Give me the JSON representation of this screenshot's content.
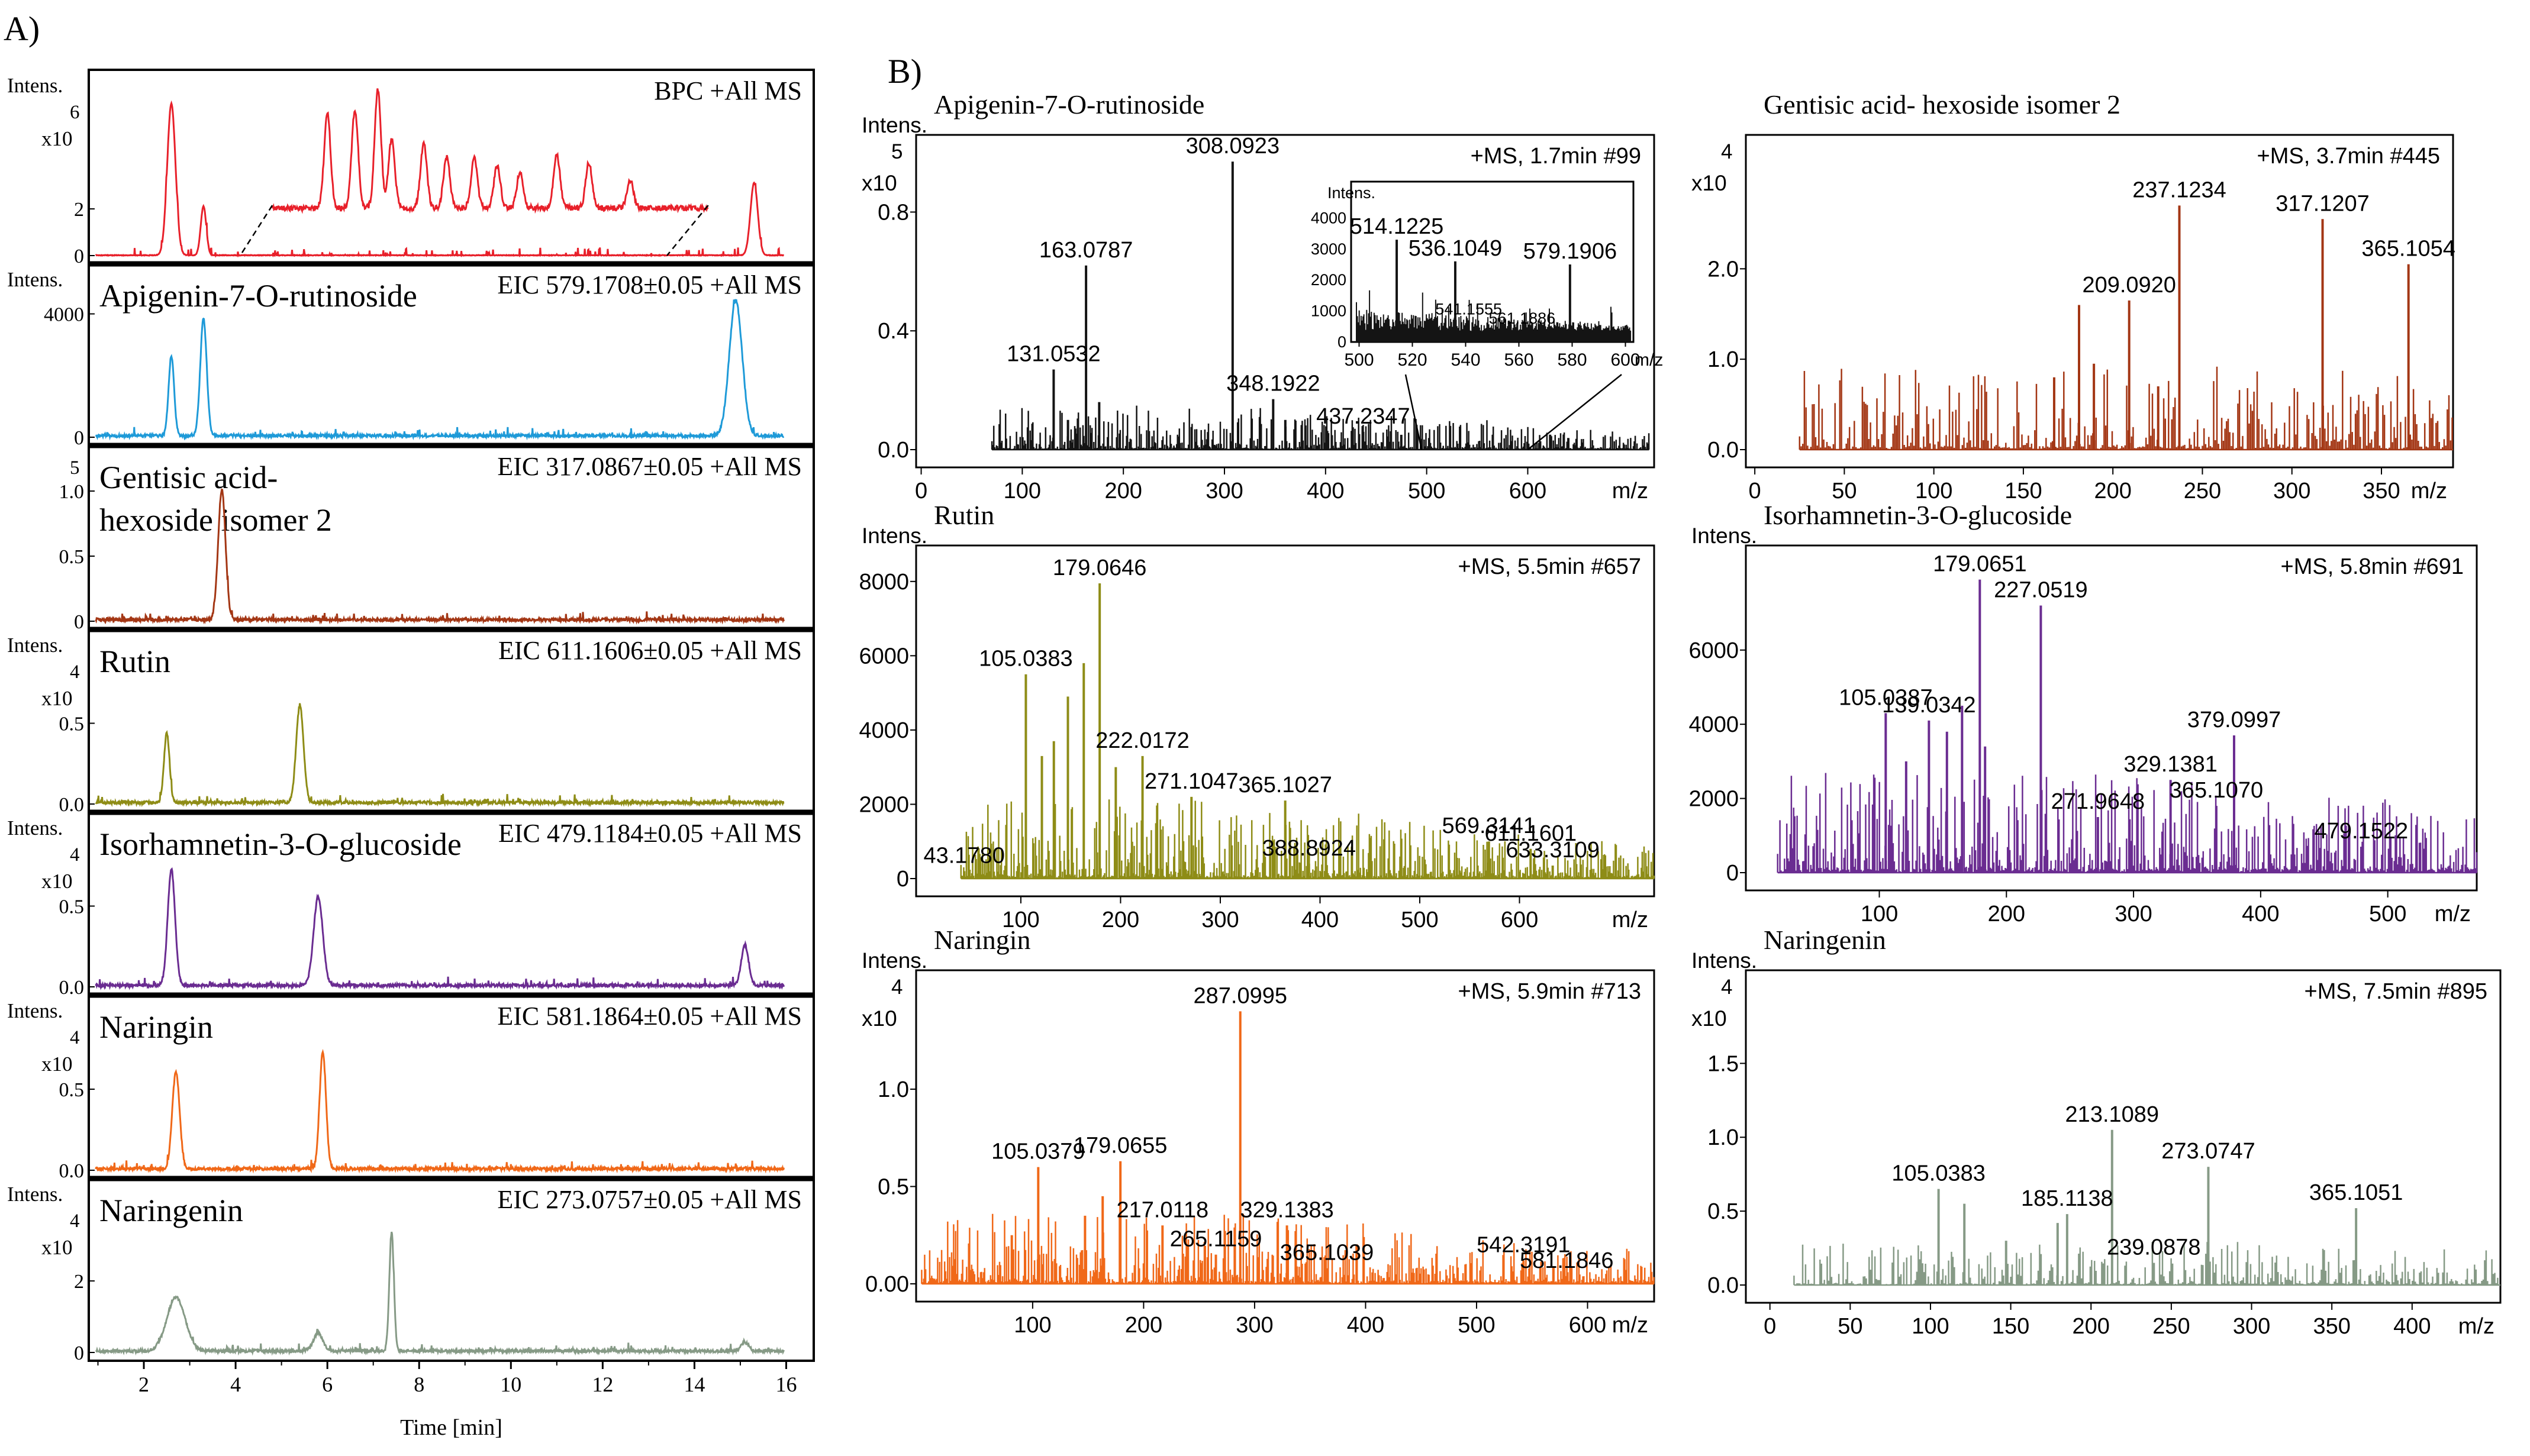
{
  "panel_a_label": "A)",
  "panel_b_label": "B)",
  "chart_data": [
    {
      "id": "a_bpc",
      "panel": "A",
      "type": "line",
      "title": "",
      "annotation": "BPC +All MS",
      "ylabel": "Intens.",
      "multiplier": "x10",
      "exponent": "6",
      "yticks": [
        "2",
        "0"
      ],
      "ytick_values": [
        2,
        0
      ],
      "ylim": [
        0,
        7.4
      ],
      "color": "#e8202a",
      "peaks": [
        [
          2.6,
          6.5,
          0.09
        ],
        [
          3.3,
          2.1,
          0.06
        ],
        [
          15.3,
          3.1,
          0.08
        ]
      ],
      "inset_trace": {
        "x_start": 4.8,
        "x_end": 14.3,
        "peaks": [
          [
            6.0,
            4.4
          ],
          [
            6.6,
            4.6
          ],
          [
            7.1,
            5.5
          ],
          [
            7.4,
            3.2
          ],
          [
            8.1,
            3.0
          ],
          [
            8.6,
            2.4
          ],
          [
            9.2,
            2.3
          ],
          [
            9.7,
            2.0
          ],
          [
            10.2,
            1.7
          ],
          [
            11.0,
            2.5
          ],
          [
            11.7,
            2.1
          ],
          [
            12.6,
            1.3
          ]
        ]
      }
    },
    {
      "id": "a_apigenin",
      "panel": "A",
      "type": "line",
      "title": "Apigenin-7-O-rutinoside",
      "annotation": "EIC 579.1708±0.05 +All MS",
      "ylabel": "Intens.",
      "multiplier": "",
      "exponent": "",
      "yticks": [
        "4000",
        "0"
      ],
      "ytick_values": [
        4000,
        0
      ],
      "ylim": [
        0,
        5200
      ],
      "color": "#1e9ad8",
      "peaks": [
        [
          2.6,
          2600,
          0.06
        ],
        [
          3.3,
          3800,
          0.07
        ],
        [
          14.9,
          4400,
          0.14
        ]
      ]
    },
    {
      "id": "a_gentisic",
      "panel": "A",
      "type": "line",
      "title": "Gentisic acid-\nhexoside isomer 2",
      "annotation": "EIC 317.0867±0.05 +All MS",
      "ylabel": "",
      "multiplier": "",
      "exponent": "5",
      "yticks": [
        "1.0",
        "0.5",
        "0"
      ],
      "ytick_values": [
        1.0,
        0.5,
        0
      ],
      "ylim": [
        0,
        1.25
      ],
      "color": "#a33614",
      "peaks": [
        [
          3.7,
          1.0,
          0.08
        ]
      ]
    },
    {
      "id": "a_rutin",
      "panel": "A",
      "type": "line",
      "title": "Rutin",
      "annotation": "EIC 611.1606±0.05 +All MS",
      "ylabel": "Intens.",
      "multiplier": "x10",
      "exponent": "4",
      "yticks": [
        "0.5",
        "0.0"
      ],
      "ytick_values": [
        0.5,
        0
      ],
      "ylim": [
        0,
        1.0
      ],
      "color": "#8e8c16",
      "peaks": [
        [
          2.5,
          0.43,
          0.06
        ],
        [
          5.4,
          0.6,
          0.08
        ]
      ]
    },
    {
      "id": "a_isorhamnetin",
      "panel": "A",
      "type": "line",
      "title": "Isorhamnetin-3-O-glucoside",
      "annotation": "EIC 479.1184±0.05 +All MS",
      "ylabel": "Intens.",
      "multiplier": "x10",
      "exponent": "4",
      "yticks": [
        "0.5",
        "0.0"
      ],
      "ytick_values": [
        0.5,
        0
      ],
      "ylim": [
        0,
        1.0
      ],
      "color": "#6a2c91",
      "peaks": [
        [
          2.6,
          0.72,
          0.08
        ],
        [
          5.8,
          0.55,
          0.1
        ],
        [
          15.1,
          0.25,
          0.08
        ]
      ]
    },
    {
      "id": "a_naringin",
      "panel": "A",
      "type": "line",
      "title": "Naringin",
      "annotation": "EIC 581.1864±0.05 +All MS",
      "ylabel": "Intens.",
      "multiplier": "x10",
      "exponent": "4",
      "yticks": [
        "0.5",
        "0.0"
      ],
      "ytick_values": [
        0.5,
        0
      ],
      "ylim": [
        0,
        1.0
      ],
      "color": "#f06818",
      "peaks": [
        [
          2.7,
          0.6,
          0.08
        ],
        [
          5.9,
          0.72,
          0.07
        ]
      ]
    },
    {
      "id": "a_naringenin",
      "panel": "A",
      "type": "line",
      "title": "Naringenin",
      "annotation": "EIC 273.0757±0.05 +All MS",
      "ylabel": "Intens.",
      "multiplier": "x10",
      "exponent": "4",
      "yticks": [
        "2",
        "0"
      ],
      "ytick_values": [
        2,
        0
      ],
      "ylim": [
        0,
        4.5
      ],
      "color": "#869a86",
      "peaks": [
        [
          2.7,
          1.5,
          0.2
        ],
        [
          5.8,
          0.5,
          0.1
        ],
        [
          7.4,
          3.3,
          0.05
        ],
        [
          15.1,
          0.25,
          0.08
        ]
      ],
      "xlabel": "Time [min]",
      "xticks": [
        "2",
        "4",
        "6",
        "8",
        "10",
        "12",
        "14",
        "16"
      ],
      "xtick_values": [
        2,
        4,
        6,
        8,
        10,
        12,
        14,
        16
      ],
      "xlim": [
        0.8,
        16.6
      ]
    },
    {
      "id": "b_apigenin",
      "panel": "B",
      "type": "bar",
      "title": "Apigenin-7-O-rutinoside",
      "scan": "+MS, 1.7min #99",
      "ylabel": "Intens.",
      "multiplier": "x10",
      "exponent": "5",
      "yticks": [
        "0.8",
        "0.4",
        "0.0"
      ],
      "ytick_values": [
        0.8,
        0.4,
        0
      ],
      "ylim": [
        0,
        1.02
      ],
      "xlabel": "m/z",
      "xticks": [
        "0",
        "100",
        "200",
        "300",
        "400",
        "500",
        "600"
      ],
      "xtick_values": [
        0,
        100,
        200,
        300,
        400,
        500,
        600
      ],
      "xlim": [
        -5,
        725
      ],
      "color": "#141414",
      "noise_range": [
        70,
        720
      ],
      "noise_level": 0.05,
      "peaks": [
        [
          163.0787,
          0.62,
          "163.0787"
        ],
        [
          131.0532,
          0.27,
          "131.0532"
        ],
        [
          308.0923,
          0.97,
          "308.0923"
        ],
        [
          348.1922,
          0.17,
          "348.1922"
        ],
        [
          437.2347,
          0.06,
          "437.2347"
        ],
        [
          176.1,
          0.16,
          ""
        ],
        [
          360.2,
          0.1,
          ""
        ],
        [
          145.2,
          0.1,
          ""
        ],
        [
          474.9,
          0.05,
          ""
        ]
      ],
      "inset": {
        "ylabel": "Intens.",
        "yticks": [
          "4000",
          "3000",
          "2000",
          "1000",
          "0"
        ],
        "ytick_values": [
          4000,
          3000,
          2000,
          1000,
          0
        ],
        "ylim": [
          0,
          4600
        ],
        "xticks": [
          "500",
          "520",
          "540",
          "560",
          "580",
          "600"
        ],
        "xtick_values": [
          500,
          520,
          540,
          560,
          580,
          600
        ],
        "xlim": [
          497,
          603
        ],
        "xlabel": "m/z",
        "peaks": [
          [
            514.1225,
            3300,
            "514.1225"
          ],
          [
            536.1049,
            2600,
            "536.1049"
          ],
          [
            579.1906,
            2500,
            "579.1906"
          ],
          [
            541.1555,
            700,
            "541.1555"
          ],
          [
            561.1886,
            400,
            "561.1886"
          ]
        ]
      }
    },
    {
      "id": "b_gentisic",
      "panel": "B",
      "type": "bar",
      "title": "Gentisic acid- hexoside isomer 2",
      "scan": "+MS, 3.7min #445",
      "ylabel": "",
      "multiplier": "x10",
      "exponent": "4",
      "yticks": [
        "2.0",
        "1.0",
        "0.0"
      ],
      "ytick_values": [
        2.0,
        1.0,
        0
      ],
      "ylim": [
        0,
        3.35
      ],
      "xlabel": "m/z",
      "xticks": [
        "0",
        "50",
        "100",
        "150",
        "200",
        "250",
        "300",
        "350"
      ],
      "xtick_values": [
        0,
        50,
        100,
        150,
        200,
        250,
        300,
        350
      ],
      "xlim": [
        -5,
        390
      ],
      "color": "#a33614",
      "noise_range": [
        25,
        390
      ],
      "noise_level": 0.3,
      "peaks": [
        [
          237.1234,
          2.7,
          "237.1234"
        ],
        [
          317.1207,
          2.55,
          "317.1207"
        ],
        [
          365.1054,
          2.05,
          "365.1054"
        ],
        [
          209.092,
          1.65,
          "209.0920"
        ],
        [
          181.1,
          1.6,
          ""
        ],
        [
          189.4,
          0.95,
          ""
        ],
        [
          225.3,
          0.7,
          ""
        ],
        [
          167.2,
          0.8,
          ""
        ]
      ]
    },
    {
      "id": "b_rutin",
      "panel": "B",
      "type": "bar",
      "title": "Rutin",
      "scan": "+MS, 5.5min #657",
      "ylabel": "Intens.",
      "multiplier": "",
      "exponent": "",
      "yticks": [
        "8000",
        "6000",
        "4000",
        "2000",
        "0"
      ],
      "ytick_values": [
        8000,
        6000,
        4000,
        2000,
        0
      ],
      "ylim": [
        0,
        8650
      ],
      "xlabel": "m/z",
      "xticks": [
        "100",
        "200",
        "300",
        "400",
        "500",
        "600"
      ],
      "xtick_values": [
        100,
        200,
        300,
        400,
        500,
        600
      ],
      "xlim": [
        -5,
        735
      ],
      "color": "#8e8c16",
      "noise_range": [
        40,
        735
      ],
      "noise_level": 700,
      "peaks": [
        [
          179.0646,
          7950,
          "179.0646"
        ],
        [
          105.0383,
          5500,
          "105.0383"
        ],
        [
          222.0172,
          3300,
          "222.0172"
        ],
        [
          271.1047,
          2200,
          "271.1047"
        ],
        [
          365.1027,
          2100,
          "365.1027"
        ],
        [
          388.8924,
          400,
          "388.8924"
        ],
        [
          611.1601,
          800,
          "611.1601"
        ],
        [
          569.3141,
          1000,
          "569.3141"
        ],
        [
          633.3109,
          350,
          "633.3109"
        ],
        [
          43.178,
          200,
          "43.1780"
        ],
        [
          163.1,
          5800,
          ""
        ],
        [
          147.2,
          4900,
          ""
        ],
        [
          133.1,
          3700,
          ""
        ],
        [
          195.2,
          3000,
          ""
        ],
        [
          121.1,
          3300,
          ""
        ]
      ]
    },
    {
      "id": "b_isorhamnetin",
      "panel": "B",
      "type": "bar",
      "title": "Isorhamnetin-3-O-glucoside",
      "scan": "+MS, 5.8min #691",
      "ylabel": "Intens.",
      "multiplier": "",
      "exponent": "",
      "yticks": [
        "6000",
        "4000",
        "2000",
        "0"
      ],
      "ytick_values": [
        6000,
        4000,
        2000,
        0
      ],
      "ylim": [
        0,
        8500
      ],
      "xlabel": "m/z",
      "xticks": [
        "100",
        "200",
        "300",
        "400",
        "500"
      ],
      "xtick_values": [
        100,
        200,
        300,
        400,
        500
      ],
      "xlim": [
        -5,
        570
      ],
      "color": "#6a2c91",
      "noise_range": [
        20,
        570
      ],
      "noise_level": 900,
      "peaks": [
        [
          179.0651,
          7900,
          "179.0651"
        ],
        [
          227.0519,
          7200,
          "227.0519"
        ],
        [
          105.0387,
          4300,
          "105.0387"
        ],
        [
          139.0342,
          4100,
          "139.0342"
        ],
        [
          379.0997,
          3700,
          "379.0997"
        ],
        [
          329.1381,
          2500,
          "329.1381"
        ],
        [
          365.107,
          1800,
          "365.1070"
        ],
        [
          271.9648,
          1500,
          "271.9648"
        ],
        [
          479.1522,
          700,
          "479.1522"
        ],
        [
          165.1,
          4500,
          ""
        ],
        [
          183.2,
          3400,
          ""
        ],
        [
          121.1,
          3000,
          ""
        ],
        [
          153.2,
          3800,
          ""
        ]
      ]
    },
    {
      "id": "b_naringin",
      "panel": "B",
      "type": "bar",
      "title": "Naringin",
      "scan": "+MS, 5.9min #713",
      "ylabel": "Intens.",
      "multiplier": "x10",
      "exponent": "4",
      "yticks": [
        "1.0",
        "0.5",
        "0.00"
      ],
      "ytick_values": [
        1.0,
        0.5,
        0
      ],
      "ylim": [
        0,
        1.55
      ],
      "xlabel": "m/z",
      "xticks": [
        "100",
        "200",
        "300",
        "400",
        "500",
        "600"
      ],
      "xtick_values": [
        100,
        200,
        300,
        400,
        500,
        600
      ],
      "xlim": [
        -5,
        660
      ],
      "color": "#f06818",
      "noise_range": [
        0,
        660
      ],
      "noise_level": 0.12,
      "peaks": [
        [
          287.0995,
          1.4,
          "287.0995"
        ],
        [
          105.0379,
          0.6,
          "105.0379"
        ],
        [
          179.0655,
          0.63,
          "179.0655"
        ],
        [
          217.0118,
          0.3,
          "217.0118"
        ],
        [
          265.1159,
          0.15,
          "265.1159"
        ],
        [
          329.1383,
          0.3,
          "329.1383"
        ],
        [
          365.1039,
          0.08,
          "365.1039"
        ],
        [
          542.3191,
          0.12,
          "542.3191"
        ],
        [
          581.1846,
          0.04,
          "581.1846"
        ],
        [
          163.1,
          0.45,
          ""
        ],
        [
          147.2,
          0.35,
          ""
        ],
        [
          81.2,
          0.25,
          ""
        ]
      ]
    },
    {
      "id": "b_naringenin",
      "panel": "B",
      "type": "bar",
      "title": "Naringenin",
      "scan": "+MS, 7.5min #895",
      "ylabel": "Intens.",
      "multiplier": "x10",
      "exponent": "4",
      "yticks": [
        "1.5",
        "1.0",
        "0.5",
        "0.0"
      ],
      "ytick_values": [
        1.5,
        1.0,
        0.5,
        0
      ],
      "ylim": [
        0,
        2.05
      ],
      "xlabel": "m/z",
      "xticks": [
        "0",
        "50",
        "100",
        "150",
        "200",
        "250",
        "300",
        "350",
        "400"
      ],
      "xtick_values": [
        0,
        50,
        100,
        150,
        200,
        250,
        300,
        350,
        400
      ],
      "xlim": [
        -15,
        455
      ],
      "color": "#869a86",
      "noise_range": [
        15,
        455
      ],
      "noise_level": 0.1,
      "peaks": [
        [
          213.1089,
          1.05,
          "213.1089"
        ],
        [
          105.0383,
          0.65,
          "105.0383"
        ],
        [
          185.1138,
          0.48,
          "185.1138"
        ],
        [
          239.0878,
          0.15,
          "239.0878"
        ],
        [
          273.0747,
          0.8,
          "273.0747"
        ],
        [
          365.1051,
          0.52,
          "365.1051"
        ],
        [
          121.1,
          0.55,
          ""
        ],
        [
          179.2,
          0.42,
          ""
        ],
        [
          147.1,
          0.3,
          ""
        ]
      ]
    }
  ]
}
